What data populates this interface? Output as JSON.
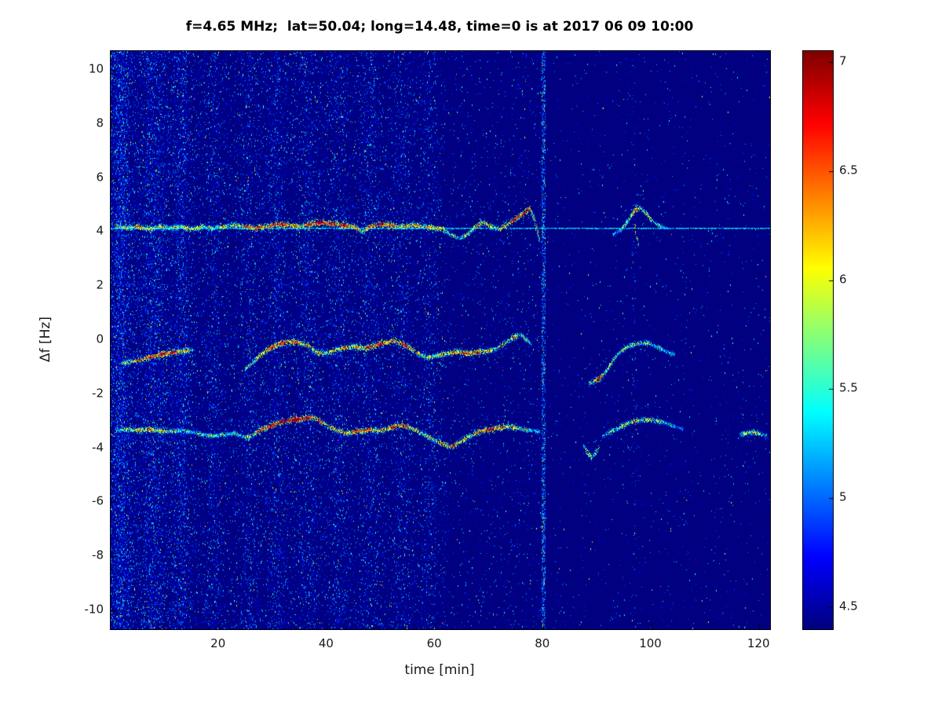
{
  "chart_data": {
    "type": "heatmap",
    "title": "f=4.65 MHz;  lat=50.04; long=14.48, time=0 is at 2017 06 09 10:00",
    "xlabel": "time [min]",
    "ylabel": "Δf [Hz]",
    "xlim": [
      0,
      122
    ],
    "ylim": [
      -10.7,
      10.7
    ],
    "x_ticks": [
      20,
      40,
      60,
      80,
      100,
      120
    ],
    "y_ticks": [
      10,
      8,
      6,
      4,
      2,
      0,
      -2,
      -4,
      -6,
      -8,
      -10
    ],
    "colormap": "jet",
    "grid": false,
    "legend": "none",
    "background_value": 4.35,
    "colorbar": {
      "min": 4.4,
      "max": 7.05,
      "ticks": [
        4.5,
        5,
        5.5,
        6,
        6.5,
        7
      ]
    },
    "carrier_line": {
      "freq": 4.15,
      "value": 5.35
    },
    "noise_bands": [
      {
        "t0": 0,
        "t1": 2.5,
        "d": 0.3
      },
      {
        "t0": 2.5,
        "t1": 14,
        "d": 0.2
      },
      {
        "t0": 14,
        "t1": 20,
        "d": 0.12
      },
      {
        "t0": 20,
        "t1": 25,
        "d": 0.09
      },
      {
        "t0": 25,
        "t1": 34,
        "d": 0.13
      },
      {
        "t0": 34,
        "t1": 43,
        "d": 0.12
      },
      {
        "t0": 43,
        "t1": 52,
        "d": 0.11
      },
      {
        "t0": 52,
        "t1": 60,
        "d": 0.1
      },
      {
        "t0": 60,
        "t1": 62,
        "d": 0.06
      },
      {
        "t0": 62,
        "t1": 79.5,
        "d": 0.03
      },
      {
        "t0": 79.6,
        "t1": 80.4,
        "d": 0.35,
        "boost": 0.25
      },
      {
        "t0": 96.3,
        "t1": 97.3,
        "d": 0.05
      },
      {
        "t0": 80.4,
        "t1": 122,
        "d": 0.012
      }
    ],
    "traces": [
      {
        "name": "upper-doppler-main",
        "points": [
          [
            1,
            4.2,
            6.0
          ],
          [
            3,
            4.15,
            5.8
          ],
          [
            5,
            4.2,
            6.2
          ],
          [
            7,
            4.1,
            5.9
          ],
          [
            9,
            4.2,
            6.0
          ],
          [
            11,
            4.15,
            5.7
          ],
          [
            13,
            4.2,
            5.9
          ],
          [
            15,
            4.1,
            6.1
          ],
          [
            17,
            4.2,
            5.8
          ],
          [
            19,
            4.15,
            5.6
          ],
          [
            21,
            4.2,
            6.0
          ],
          [
            23,
            4.25,
            5.8
          ],
          [
            25,
            4.2,
            6.3
          ],
          [
            27,
            4.15,
            6.5
          ],
          [
            29,
            4.2,
            6.2
          ],
          [
            31,
            4.3,
            6.6
          ],
          [
            33,
            4.25,
            6.4
          ],
          [
            35,
            4.2,
            6.0
          ],
          [
            37,
            4.3,
            6.5
          ],
          [
            39,
            4.35,
            6.7
          ],
          [
            41,
            4.3,
            6.4
          ],
          [
            43,
            4.25,
            6.6
          ],
          [
            45,
            4.2,
            6.2
          ],
          [
            46.5,
            4.0,
            5.9
          ],
          [
            48,
            4.2,
            6.4
          ],
          [
            50,
            4.3,
            6.6
          ],
          [
            52,
            4.25,
            6.3
          ],
          [
            54,
            4.2,
            6.0
          ],
          [
            56,
            4.25,
            6.2
          ],
          [
            58,
            4.2,
            5.9
          ],
          [
            60,
            4.15,
            6.3
          ],
          [
            61.5,
            4.1,
            6.0
          ],
          [
            63,
            3.9,
            5.7
          ],
          [
            64.5,
            3.75,
            5.6
          ],
          [
            66,
            3.9,
            5.8
          ],
          [
            67.5,
            4.2,
            6.0
          ],
          [
            69,
            4.35,
            6.2
          ],
          [
            70.5,
            4.2,
            5.9
          ],
          [
            72,
            4.1,
            6.0
          ],
          [
            73.5,
            4.3,
            6.3
          ],
          [
            75,
            4.5,
            6.5
          ],
          [
            76.5,
            4.7,
            6.6
          ],
          [
            77.5,
            4.9,
            6.3
          ],
          [
            78.5,
            4.4,
            5.9
          ],
          [
            79.5,
            3.6,
            5.5
          ]
        ]
      },
      {
        "name": "upper-doppler-loop",
        "points": [
          [
            93,
            3.9,
            5.4
          ],
          [
            94.5,
            4.1,
            5.6
          ],
          [
            96,
            4.5,
            5.9
          ],
          [
            97,
            4.8,
            6.2
          ],
          [
            98,
            4.9,
            6.0
          ],
          [
            99,
            4.7,
            5.7
          ],
          [
            100,
            4.45,
            5.9
          ],
          [
            101,
            4.3,
            5.6
          ],
          [
            102,
            4.2,
            5.4
          ],
          [
            103,
            4.15,
            5.3
          ]
        ]
      },
      {
        "name": "upper-doppler-loop-tail",
        "points": [
          [
            97,
            4.2,
            6.1
          ],
          [
            97.3,
            3.8,
            5.9
          ],
          [
            97.7,
            3.4,
            5.6
          ]
        ]
      },
      {
        "name": "middle-doppler-a",
        "points": [
          [
            2,
            -0.85,
            5.6
          ],
          [
            4,
            -0.8,
            6.0
          ],
          [
            6,
            -0.7,
            6.3
          ],
          [
            8,
            -0.6,
            6.5
          ],
          [
            10,
            -0.5,
            6.6
          ],
          [
            12,
            -0.45,
            6.4
          ],
          [
            14,
            -0.4,
            6.0
          ],
          [
            15.5,
            -0.35,
            5.6
          ]
        ]
      },
      {
        "name": "middle-doppler-b",
        "points": [
          [
            25,
            -1.05,
            5.5
          ],
          [
            26,
            -0.9,
            5.8
          ],
          [
            27.5,
            -0.6,
            6.0
          ],
          [
            29,
            -0.35,
            6.3
          ],
          [
            31,
            -0.15,
            6.5
          ],
          [
            33,
            -0.05,
            6.4
          ],
          [
            35,
            -0.1,
            6.2
          ],
          [
            36.5,
            -0.2,
            6.0
          ],
          [
            38,
            -0.45,
            6.1
          ],
          [
            39.5,
            -0.5,
            5.9
          ],
          [
            41,
            -0.4,
            6.0
          ],
          [
            43,
            -0.3,
            6.2
          ],
          [
            45,
            -0.25,
            6.0
          ],
          [
            47,
            -0.3,
            6.3
          ],
          [
            49,
            -0.2,
            6.5
          ],
          [
            51,
            -0.1,
            6.4
          ],
          [
            52.5,
            0.0,
            6.2
          ],
          [
            54,
            -0.15,
            6.5
          ],
          [
            55.5,
            -0.3,
            6.3
          ],
          [
            57,
            -0.5,
            6.0
          ],
          [
            58.5,
            -0.65,
            5.8
          ],
          [
            60,
            -0.6,
            5.9
          ],
          [
            62,
            -0.5,
            6.0
          ],
          [
            64,
            -0.45,
            6.2
          ],
          [
            66,
            -0.5,
            6.4
          ],
          [
            68,
            -0.45,
            6.3
          ],
          [
            70,
            -0.4,
            6.0
          ],
          [
            71.5,
            -0.3,
            5.8
          ],
          [
            73,
            -0.1,
            5.9
          ],
          [
            74.5,
            0.1,
            6.0
          ],
          [
            76,
            0.2,
            5.8
          ],
          [
            77,
            0.0,
            5.6
          ],
          [
            78,
            -0.2,
            5.4
          ]
        ]
      },
      {
        "name": "middle-doppler-c",
        "points": [
          [
            88.5,
            -1.6,
            5.7
          ],
          [
            89.5,
            -1.5,
            6.2
          ],
          [
            90.5,
            -1.4,
            6.4
          ],
          [
            91.5,
            -1.2,
            6.0
          ],
          [
            92.5,
            -0.9,
            5.7
          ],
          [
            93.5,
            -0.6,
            5.8
          ],
          [
            94.5,
            -0.4,
            5.6
          ],
          [
            95.5,
            -0.25,
            5.9
          ],
          [
            97,
            -0.15,
            5.7
          ],
          [
            98.5,
            -0.1,
            5.8
          ],
          [
            100,
            -0.15,
            5.6
          ],
          [
            101.5,
            -0.3,
            5.5
          ],
          [
            103,
            -0.45,
            5.4
          ],
          [
            104.5,
            -0.55,
            5.2
          ]
        ]
      },
      {
        "name": "lower-doppler-main",
        "points": [
          [
            1,
            -3.35,
            5.6
          ],
          [
            3,
            -3.3,
            5.8
          ],
          [
            5,
            -3.35,
            6.0
          ],
          [
            7,
            -3.3,
            6.2
          ],
          [
            9,
            -3.35,
            6.0
          ],
          [
            11,
            -3.4,
            5.8
          ],
          [
            13,
            -3.35,
            5.6
          ],
          [
            15,
            -3.4,
            5.5
          ],
          [
            17,
            -3.5,
            5.6
          ],
          [
            19,
            -3.55,
            5.7
          ],
          [
            21,
            -3.5,
            5.6
          ],
          [
            23,
            -3.45,
            5.5
          ],
          [
            25,
            -3.6,
            5.7
          ],
          [
            26.5,
            -3.5,
            6.0
          ],
          [
            28,
            -3.3,
            6.4
          ],
          [
            30,
            -3.15,
            6.6
          ],
          [
            32,
            -3.0,
            6.7
          ],
          [
            34,
            -2.95,
            6.8
          ],
          [
            36,
            -2.9,
            6.6
          ],
          [
            37.5,
            -2.85,
            6.4
          ],
          [
            39,
            -3.05,
            6.2
          ],
          [
            40.5,
            -3.2,
            6.0
          ],
          [
            42,
            -3.35,
            6.2
          ],
          [
            43.5,
            -3.45,
            6.0
          ],
          [
            45,
            -3.4,
            6.3
          ],
          [
            46.5,
            -3.35,
            6.5
          ],
          [
            48,
            -3.3,
            6.3
          ],
          [
            49.5,
            -3.35,
            6.0
          ],
          [
            51,
            -3.3,
            6.2
          ],
          [
            52.5,
            -3.2,
            6.5
          ],
          [
            54,
            -3.15,
            6.4
          ],
          [
            55.5,
            -3.25,
            6.1
          ],
          [
            57,
            -3.4,
            5.9
          ],
          [
            58.5,
            -3.55,
            5.8
          ],
          [
            60,
            -3.7,
            5.9
          ],
          [
            61.5,
            -3.85,
            6.1
          ],
          [
            63,
            -3.95,
            6.3
          ],
          [
            64.5,
            -3.8,
            6.1
          ],
          [
            66,
            -3.6,
            5.9
          ],
          [
            67.5,
            -3.45,
            6.1
          ],
          [
            69,
            -3.35,
            6.4
          ],
          [
            70.5,
            -3.3,
            6.5
          ],
          [
            72,
            -3.25,
            6.3
          ],
          [
            73.5,
            -3.2,
            6.1
          ],
          [
            75,
            -3.25,
            5.9
          ],
          [
            76.5,
            -3.3,
            5.7
          ],
          [
            78,
            -3.35,
            5.5
          ],
          [
            79.5,
            -3.4,
            5.2
          ]
        ]
      },
      {
        "name": "lower-doppler-dip",
        "points": [
          [
            87.5,
            -3.9,
            5.3
          ],
          [
            88.3,
            -4.2,
            5.8
          ],
          [
            89,
            -4.35,
            6.0
          ],
          [
            89.7,
            -4.2,
            5.7
          ],
          [
            90.4,
            -3.9,
            5.4
          ]
        ]
      },
      {
        "name": "lower-doppler-arc",
        "points": [
          [
            91,
            -3.55,
            5.4
          ],
          [
            92.5,
            -3.4,
            5.6
          ],
          [
            94,
            -3.25,
            5.8
          ],
          [
            95.5,
            -3.1,
            5.9
          ],
          [
            97,
            -3.0,
            6.0
          ],
          [
            98.5,
            -2.95,
            5.8
          ],
          [
            100,
            -2.95,
            5.9
          ],
          [
            101.5,
            -3.0,
            5.7
          ],
          [
            103,
            -3.1,
            5.5
          ],
          [
            104.5,
            -3.2,
            5.3
          ],
          [
            106,
            -3.3,
            5.1
          ]
        ]
      },
      {
        "name": "lower-doppler-end",
        "points": [
          [
            116.5,
            -3.5,
            5.5
          ],
          [
            117.5,
            -3.45,
            5.8
          ],
          [
            118.5,
            -3.4,
            6.0
          ],
          [
            119.5,
            -3.45,
            5.8
          ],
          [
            120.5,
            -3.5,
            5.6
          ],
          [
            121.5,
            -3.55,
            5.4
          ]
        ]
      }
    ]
  }
}
